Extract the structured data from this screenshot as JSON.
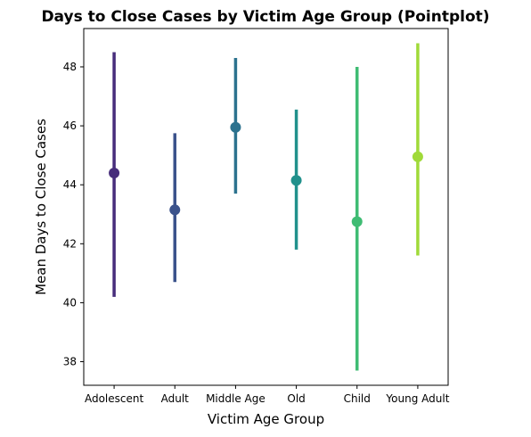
{
  "chart_data": {
    "type": "pointplot",
    "title": "Days to Close Cases by Victim Age Group (Pointplot)",
    "xlabel": "Victim Age Group",
    "ylabel": "Mean Days to Close Cases",
    "categories": [
      "Adolescent",
      "Adult",
      "Middle Age",
      "Old",
      "Child",
      "Young Adult"
    ],
    "values": [
      44.4,
      43.15,
      45.95,
      44.15,
      42.75,
      44.95
    ],
    "ci_low": [
      40.2,
      40.7,
      43.7,
      41.8,
      37.7,
      41.6
    ],
    "ci_high": [
      48.5,
      45.75,
      48.3,
      46.55,
      48.0,
      48.8
    ],
    "colors": [
      "#472d7b",
      "#3b528b",
      "#2c728e",
      "#21918c",
      "#3fbc73",
      "#a0da39"
    ],
    "yticks": [
      38,
      40,
      42,
      44,
      46,
      48
    ],
    "ylim": [
      37.2,
      49.3
    ],
    "grid": false,
    "legend": false
  }
}
